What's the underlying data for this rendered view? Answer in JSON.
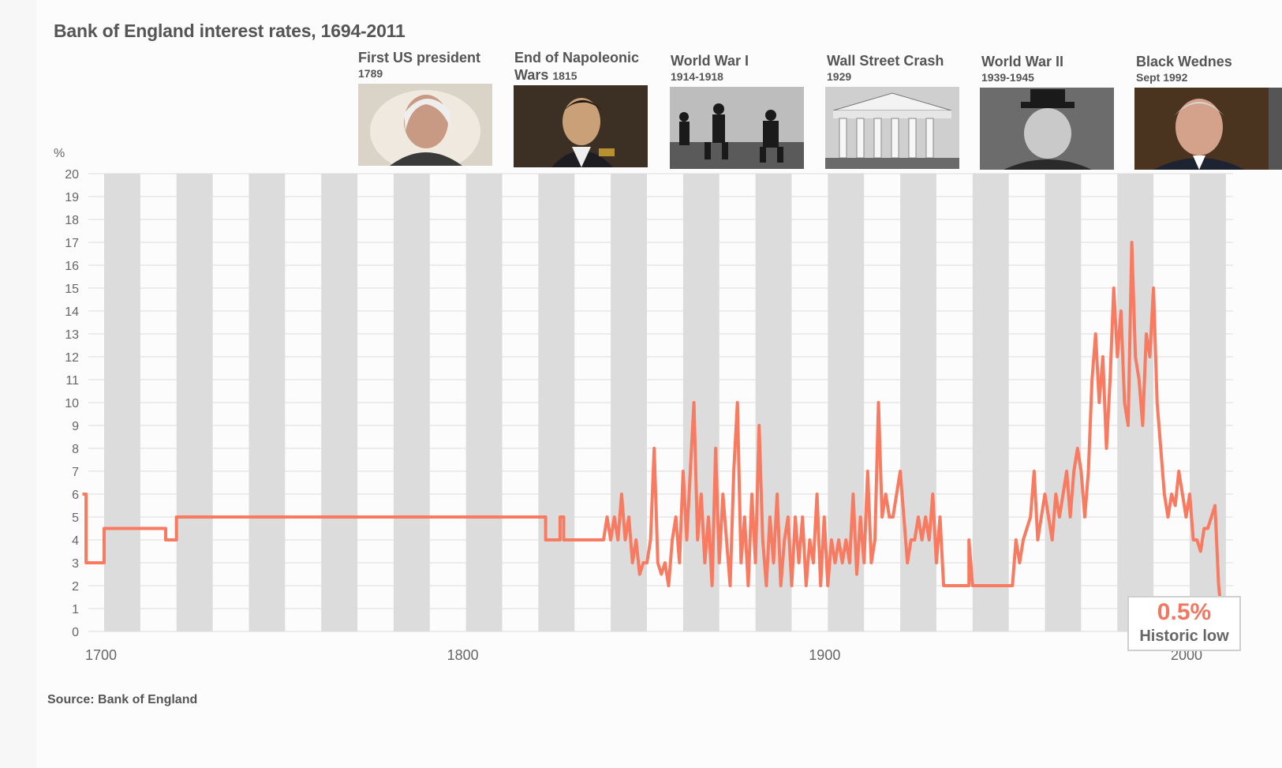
{
  "header": {
    "title": "Bank of England interest rates, 1694-2011"
  },
  "events": [
    {
      "label": "First US president",
      "date": "1789",
      "year": 1789
    },
    {
      "label": "End of Napoleonic",
      "label2": "Wars",
      "date": "1815",
      "year": 1815
    },
    {
      "label": "World War I",
      "date": "1914-1918",
      "year": 1914
    },
    {
      "label": "Wall Street Crash",
      "date": "1929",
      "year": 1929
    },
    {
      "label": "World War II",
      "date": "1939-1945",
      "year": 1939
    },
    {
      "label": "Black Wednes",
      "date": "Sept 1992",
      "year": 1992
    }
  ],
  "unit_label": "%",
  "source": "Source: Bank of England",
  "annotation": {
    "value": "0.5%",
    "text": "Historic low"
  },
  "colors": {
    "line": "#f87a60",
    "band": "#dcdcdc",
    "grid": "#dddddd",
    "text": "#555555"
  },
  "chart_data": {
    "type": "line",
    "title": "Bank of England interest rates, 1694-2011",
    "ylabel": "%",
    "xlim": [
      1694,
      2011
    ],
    "ylim": [
      0,
      20
    ],
    "yticks": [
      0,
      1,
      2,
      3,
      4,
      5,
      6,
      7,
      8,
      9,
      10,
      11,
      12,
      13,
      14,
      15,
      16,
      17,
      18,
      19,
      20
    ],
    "xticks": [
      1700,
      1800,
      1900,
      2000
    ],
    "bands": "alternating grey decade columns",
    "series": [
      {
        "points": [
          [
            1694,
            6
          ],
          [
            1695,
            6
          ],
          [
            1695,
            3
          ],
          [
            1700,
            3
          ],
          [
            1700,
            4.5
          ],
          [
            1717,
            4.5
          ],
          [
            1717,
            4
          ],
          [
            1720,
            4
          ],
          [
            1720,
            5
          ],
          [
            1822,
            5
          ],
          [
            1822,
            4
          ],
          [
            1826,
            4
          ],
          [
            1826,
            5
          ],
          [
            1827,
            5
          ],
          [
            1827,
            4
          ],
          [
            1838,
            4
          ],
          [
            1839,
            5
          ],
          [
            1840,
            4
          ],
          [
            1841,
            5
          ],
          [
            1842,
            4
          ],
          [
            1843,
            6
          ],
          [
            1844,
            4
          ],
          [
            1845,
            5
          ],
          [
            1846,
            3
          ],
          [
            1847,
            4
          ],
          [
            1848,
            2.5
          ],
          [
            1849,
            3
          ],
          [
            1850,
            3
          ],
          [
            1851,
            4
          ],
          [
            1852,
            8
          ],
          [
            1853,
            3
          ],
          [
            1854,
            2.5
          ],
          [
            1855,
            3
          ],
          [
            1856,
            2
          ],
          [
            1857,
            4
          ],
          [
            1858,
            5
          ],
          [
            1859,
            3
          ],
          [
            1860,
            7
          ],
          [
            1861,
            4
          ],
          [
            1862,
            7
          ],
          [
            1863,
            10
          ],
          [
            1864,
            4
          ],
          [
            1865,
            6
          ],
          [
            1866,
            3
          ],
          [
            1867,
            5
          ],
          [
            1868,
            2
          ],
          [
            1869,
            8
          ],
          [
            1870,
            3
          ],
          [
            1871,
            6
          ],
          [
            1872,
            4
          ],
          [
            1873,
            2
          ],
          [
            1874,
            7
          ],
          [
            1875,
            10
          ],
          [
            1876,
            3
          ],
          [
            1877,
            5
          ],
          [
            1878,
            2
          ],
          [
            1879,
            6
          ],
          [
            1880,
            3
          ],
          [
            1881,
            9
          ],
          [
            1882,
            4
          ],
          [
            1883,
            2
          ],
          [
            1884,
            5
          ],
          [
            1885,
            3
          ],
          [
            1886,
            6
          ],
          [
            1887,
            2
          ],
          [
            1888,
            4
          ],
          [
            1889,
            5
          ],
          [
            1890,
            2
          ],
          [
            1891,
            5
          ],
          [
            1892,
            3
          ],
          [
            1893,
            5
          ],
          [
            1894,
            2
          ],
          [
            1895,
            4
          ],
          [
            1896,
            3
          ],
          [
            1897,
            6
          ],
          [
            1898,
            2
          ],
          [
            1899,
            5
          ],
          [
            1900,
            2
          ],
          [
            1901,
            4
          ],
          [
            1902,
            3
          ],
          [
            1903,
            4
          ],
          [
            1904,
            3
          ],
          [
            1905,
            4
          ],
          [
            1906,
            3
          ],
          [
            1907,
            6
          ],
          [
            1908,
            2.5
          ],
          [
            1909,
            5
          ],
          [
            1910,
            3
          ],
          [
            1911,
            7
          ],
          [
            1912,
            3
          ],
          [
            1913,
            4
          ],
          [
            1914,
            10
          ],
          [
            1915,
            5
          ],
          [
            1916,
            6
          ],
          [
            1917,
            5
          ],
          [
            1918,
            5
          ],
          [
            1919,
            6
          ],
          [
            1920,
            7
          ],
          [
            1921,
            5
          ],
          [
            1922,
            3
          ],
          [
            1923,
            4
          ],
          [
            1924,
            4
          ],
          [
            1925,
            5
          ],
          [
            1926,
            4
          ],
          [
            1927,
            5
          ],
          [
            1928,
            4
          ],
          [
            1929,
            6
          ],
          [
            1930,
            3
          ],
          [
            1931,
            5
          ],
          [
            1932,
            2
          ],
          [
            1939,
            2
          ],
          [
            1939,
            4
          ],
          [
            1940,
            2
          ],
          [
            1951,
            2
          ],
          [
            1952,
            4
          ],
          [
            1953,
            3
          ],
          [
            1954,
            4
          ],
          [
            1955,
            4.5
          ],
          [
            1956,
            5
          ],
          [
            1957,
            7
          ],
          [
            1958,
            4
          ],
          [
            1959,
            5
          ],
          [
            1960,
            6
          ],
          [
            1961,
            5
          ],
          [
            1962,
            4
          ],
          [
            1963,
            6
          ],
          [
            1964,
            5
          ],
          [
            1965,
            6
          ],
          [
            1966,
            7
          ],
          [
            1967,
            5
          ],
          [
            1968,
            7
          ],
          [
            1969,
            8
          ],
          [
            1970,
            7
          ],
          [
            1971,
            5
          ],
          [
            1972,
            7
          ],
          [
            1973,
            11
          ],
          [
            1974,
            13
          ],
          [
            1975,
            10
          ],
          [
            1976,
            12
          ],
          [
            1977,
            8
          ],
          [
            1978,
            11
          ],
          [
            1979,
            15
          ],
          [
            1980,
            12
          ],
          [
            1981,
            14
          ],
          [
            1982,
            10
          ],
          [
            1983,
            9
          ],
          [
            1984,
            17
          ],
          [
            1985,
            12
          ],
          [
            1986,
            11
          ],
          [
            1987,
            9
          ],
          [
            1988,
            13
          ],
          [
            1989,
            12
          ],
          [
            1990,
            15
          ],
          [
            1991,
            10
          ],
          [
            1992,
            8
          ],
          [
            1993,
            6
          ],
          [
            1994,
            5
          ],
          [
            1995,
            6
          ],
          [
            1996,
            5.5
          ],
          [
            1997,
            7
          ],
          [
            1998,
            6
          ],
          [
            1999,
            5
          ],
          [
            2000,
            6
          ],
          [
            2001,
            4
          ],
          [
            2002,
            4
          ],
          [
            2003,
            3.5
          ],
          [
            2004,
            4.5
          ],
          [
            2005,
            4.5
          ],
          [
            2006,
            5
          ],
          [
            2007,
            5.5
          ],
          [
            2008,
            2
          ],
          [
            2009,
            0.5
          ],
          [
            2011,
            0.5
          ]
        ]
      }
    ]
  }
}
